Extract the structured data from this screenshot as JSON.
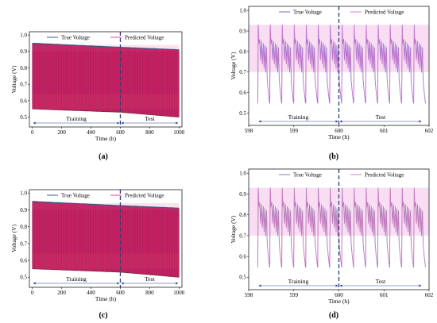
{
  "chart_data": [
    {
      "type": "area",
      "panel_label": "(a)",
      "xlabel": "Time (h)",
      "ylabel": "Voltage (V)",
      "xlim": [
        -20,
        1020
      ],
      "ylim": [
        0.44,
        1.02
      ],
      "xticks": [
        "0",
        "200",
        "400",
        "600",
        "800",
        "1000"
      ],
      "yticks": [
        "0.5",
        "0.6",
        "0.7",
        "0.8",
        "0.9",
        "1.0"
      ],
      "series": [
        {
          "name": "True Voltage",
          "color": "#3a5a8a"
        },
        {
          "name": "Predicted Voltage",
          "color": "#e8497f"
        }
      ],
      "envelope": {
        "x": [
          0,
          600,
          1000
        ],
        "upper": [
          0.95,
          0.925,
          0.91
        ],
        "lower": [
          0.55,
          0.53,
          0.5
        ]
      },
      "split": 600,
      "segments": [
        "Training",
        "Test"
      ],
      "legend_position": "top-center"
    },
    {
      "type": "line",
      "panel_label": "(b)",
      "xlabel": "Time (h)",
      "ylabel": "Voltage (V)",
      "xlim": [
        598,
        602
      ],
      "ylim": [
        0.44,
        1.02
      ],
      "xticks": [
        "598",
        "599",
        "600",
        "601",
        "602"
      ],
      "yticks": [
        "0.5",
        "0.6",
        "0.7",
        "0.8",
        "0.9",
        "1.0"
      ],
      "series": [
        {
          "name": "True Voltage",
          "color": "#6b6fd8"
        },
        {
          "name": "Predicted Voltage",
          "color": "#e07ac8"
        }
      ],
      "cycle_period_h": 0.266,
      "cycle_start_h": 598.2,
      "cycle_end_h": 601.85,
      "peak_voltage": 0.93,
      "min_voltage": 0.55,
      "split": 600,
      "segments": [
        "Training",
        "Test"
      ],
      "legend_position": "top-center"
    },
    {
      "type": "area",
      "panel_label": "(c)",
      "xlabel": "Time (h)",
      "ylabel": "Voltage (V)",
      "xlim": [
        -20,
        1020
      ],
      "ylim": [
        0.44,
        1.02
      ],
      "xticks": [
        "0",
        "200",
        "400",
        "600",
        "800",
        "1000"
      ],
      "yticks": [
        "0.5",
        "0.6",
        "0.7",
        "0.8",
        "0.9",
        "1.0"
      ],
      "series": [
        {
          "name": "True Voltage",
          "color": "#3a5a8a"
        },
        {
          "name": "Predicted Voltage",
          "color": "#e8497f"
        }
      ],
      "envelope": {
        "x": [
          0,
          600,
          1000
        ],
        "upper": [
          0.95,
          0.925,
          0.91
        ],
        "lower": [
          0.55,
          0.53,
          0.5
        ]
      },
      "split": 600,
      "segments": [
        "Training",
        "Test"
      ],
      "legend_position": "top-center"
    },
    {
      "type": "line",
      "panel_label": "(d)",
      "xlabel": "Time (h)",
      "ylabel": "Voltage (V)",
      "xlim": [
        598,
        602
      ],
      "ylim": [
        0.44,
        1.02
      ],
      "xticks": [
        "598",
        "599",
        "600",
        "601",
        "602"
      ],
      "yticks": [
        "0.5",
        "0.6",
        "0.7",
        "0.8",
        "0.9",
        "1.0"
      ],
      "series": [
        {
          "name": "True Voltage",
          "color": "#7a7fa8"
        },
        {
          "name": "Predicted Voltage",
          "color": "#e07ac8"
        }
      ],
      "cycle_period_h": 0.266,
      "cycle_start_h": 598.2,
      "cycle_end_h": 601.85,
      "peak_voltage": 0.93,
      "min_voltage": 0.55,
      "split": 600,
      "segments": [
        "Training",
        "Test"
      ],
      "legend_position": "top-center"
    }
  ]
}
